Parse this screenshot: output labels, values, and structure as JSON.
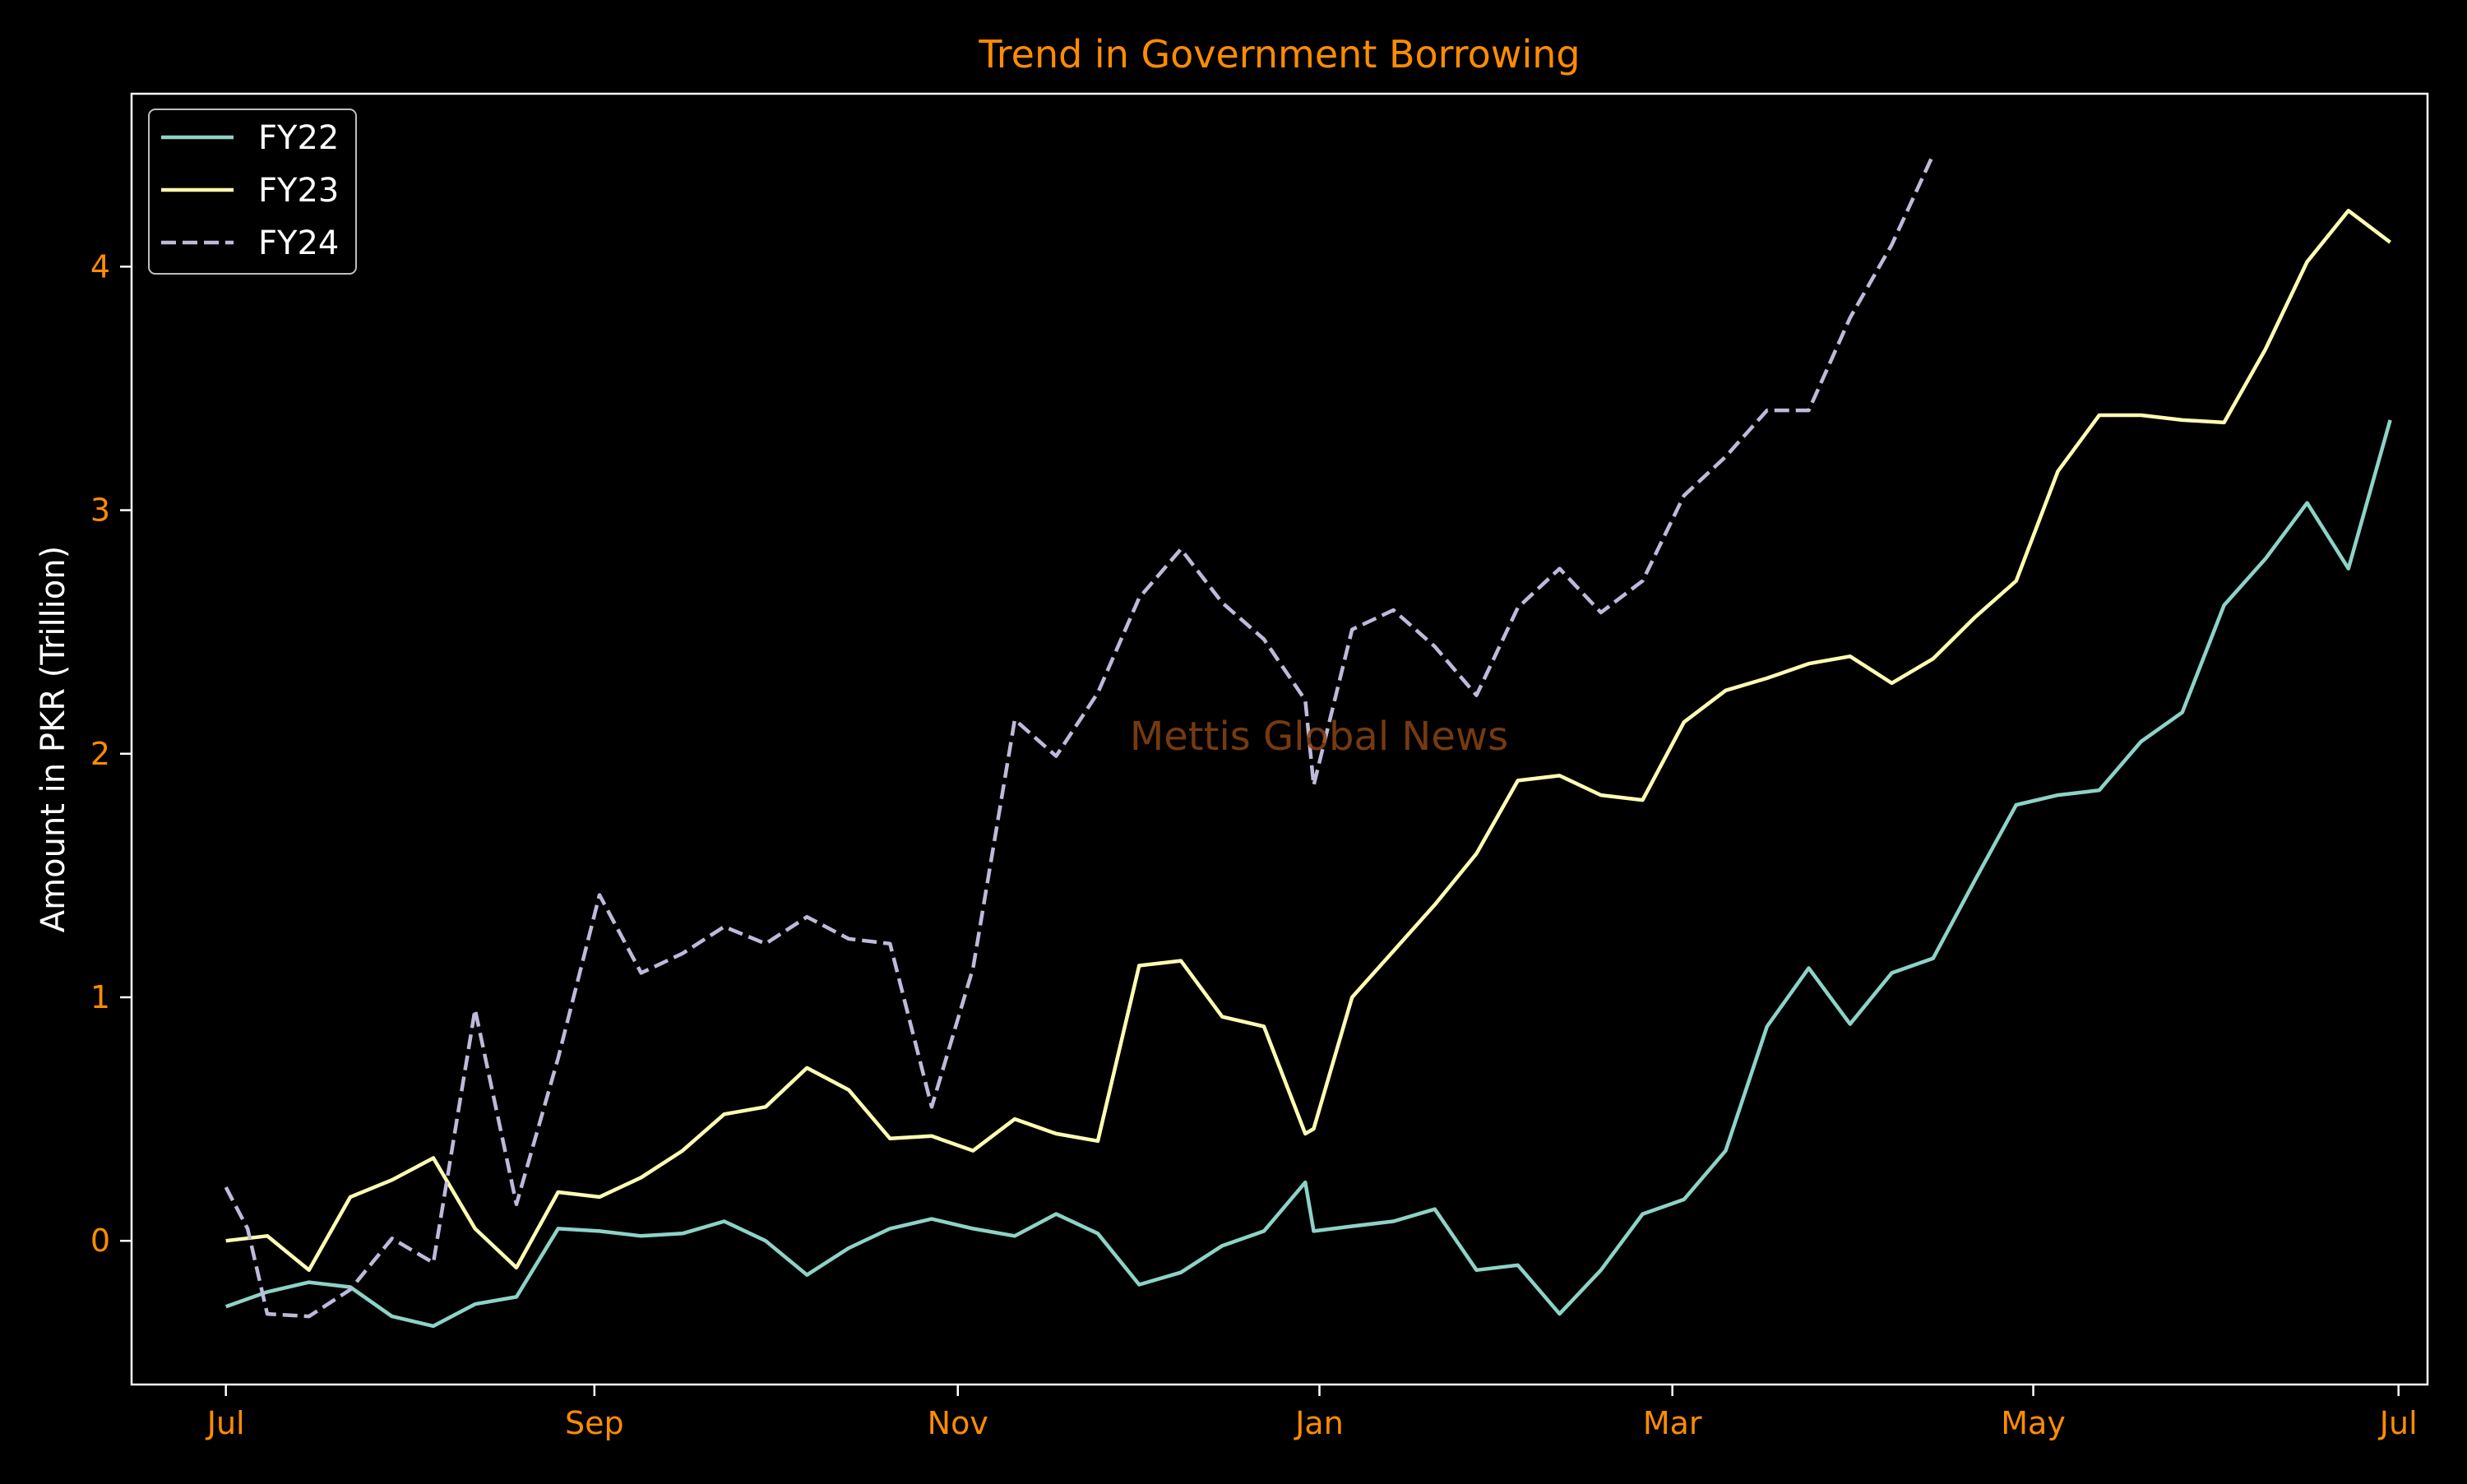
{
  "colors": {
    "background": "#000000",
    "axes_frame": "#ffffff",
    "title": "#ff8c00",
    "tick_labels": "#ff8c00",
    "axis_label": "#ffffff",
    "legend_text": "#ffffff",
    "legend_frame": "#bfbfbf",
    "watermark": "#8b4513"
  },
  "watermark": "Mettis Global News",
  "chart_data": {
    "type": "line",
    "title": "Trend in Government Borrowing",
    "xlabel": "",
    "ylabel": "Amount in PKR (Trillion)",
    "x_unit": "week index from start of fiscal year (July)",
    "xlim": [
      -2.6,
      60.7
    ],
    "ylim": [
      -0.59,
      4.71
    ],
    "x_ticks": [
      {
        "x": 0,
        "label": "Jul"
      },
      {
        "x": 10.16,
        "label": "Sep"
      },
      {
        "x": 20.18,
        "label": "Nov"
      },
      {
        "x": 30.15,
        "label": "Jan"
      },
      {
        "x": 39.88,
        "label": "Mar"
      },
      {
        "x": 49.83,
        "label": "May"
      },
      {
        "x": 59.9,
        "label": "Jul"
      }
    ],
    "y_ticks": [
      0,
      1,
      2,
      3,
      4
    ],
    "grid": false,
    "legend": {
      "position": "top-left"
    },
    "series": [
      {
        "name": "FY22",
        "color": "#8dd3c7",
        "dash": "solid",
        "x": [
          0,
          1.14,
          2.29,
          3.43,
          4.58,
          5.72,
          6.87,
          8.01,
          9.16,
          10.3,
          11.45,
          12.59,
          13.74,
          14.88,
          16.02,
          17.17,
          18.31,
          19.46,
          20.6,
          21.75,
          22.89,
          24.04,
          25.18,
          26.33,
          27.47,
          28.62,
          29.76,
          29.99,
          31.05,
          32.19,
          33.33,
          34.48,
          35.62,
          36.77,
          37.91,
          39.06,
          40.2,
          41.35,
          42.49,
          43.64,
          44.78,
          45.93,
          47.07,
          48.22,
          49.36,
          50.51,
          51.65,
          52.8,
          53.94,
          55.09,
          56.23,
          57.38,
          58.52,
          59.67
        ],
        "values": [
          -0.27,
          -0.21,
          -0.17,
          -0.19,
          -0.31,
          -0.35,
          -0.26,
          -0.23,
          0.05,
          0.04,
          0.02,
          0.03,
          0.08,
          0.0,
          -0.14,
          -0.03,
          0.05,
          0.09,
          0.05,
          0.02,
          0.11,
          0.03,
          -0.18,
          -0.13,
          -0.02,
          0.04,
          0.24,
          0.04,
          0.06,
          0.08,
          0.13,
          -0.12,
          -0.1,
          -0.3,
          -0.12,
          0.11,
          0.17,
          0.37,
          0.88,
          1.12,
          0.89,
          1.1,
          1.16,
          1.48,
          1.79,
          1.83,
          1.85,
          2.05,
          2.17,
          2.61,
          2.8,
          3.03,
          2.76,
          3.37
        ]
      },
      {
        "name": "FY23",
        "color": "#ffffb3",
        "dash": "solid",
        "x": [
          0,
          1.14,
          2.29,
          3.43,
          4.58,
          5.72,
          6.87,
          8.01,
          9.16,
          10.3,
          11.45,
          12.59,
          13.74,
          14.88,
          16.02,
          17.17,
          18.31,
          19.46,
          20.6,
          21.75,
          22.89,
          24.04,
          25.18,
          26.33,
          27.47,
          28.62,
          29.76,
          29.99,
          31.05,
          32.19,
          33.33,
          34.48,
          35.62,
          36.77,
          37.91,
          39.06,
          40.2,
          41.35,
          42.49,
          43.64,
          44.78,
          45.93,
          47.07,
          48.22,
          49.36,
          50.51,
          51.65,
          52.8,
          53.94,
          55.09,
          56.23,
          57.38,
          58.52,
          59.67
        ],
        "values": [
          0.0,
          0.02,
          -0.12,
          0.18,
          0.25,
          0.34,
          0.05,
          -0.11,
          0.2,
          0.18,
          0.26,
          0.37,
          0.52,
          0.55,
          0.71,
          0.62,
          0.42,
          0.43,
          0.37,
          0.5,
          0.44,
          0.41,
          1.13,
          1.15,
          0.92,
          0.88,
          0.44,
          0.46,
          1.0,
          1.19,
          1.38,
          1.59,
          1.89,
          1.91,
          1.83,
          1.81,
          2.13,
          2.26,
          2.31,
          2.37,
          2.4,
          2.29,
          2.39,
          2.56,
          2.71,
          3.16,
          3.39,
          3.39,
          3.37,
          3.36,
          3.66,
          4.02,
          4.23,
          4.1
        ]
      },
      {
        "name": "FY24",
        "color": "#bebada",
        "dash": "dashed",
        "x": [
          0,
          0.6,
          1.14,
          2.29,
          3.43,
          4.58,
          5.72,
          6.87,
          8.01,
          9.16,
          10.3,
          11.45,
          12.59,
          13.74,
          14.88,
          16.02,
          17.17,
          18.31,
          19.46,
          20.6,
          21.75,
          22.89,
          24.04,
          25.18,
          26.33,
          27.47,
          28.62,
          29.76,
          29.99,
          31.05,
          32.19,
          33.33,
          34.48,
          35.62,
          36.77,
          37.91,
          39.06,
          40.2,
          41.35,
          42.49,
          43.64,
          44.78,
          45.93,
          47.07
        ],
        "values": [
          0.22,
          0.05,
          -0.3,
          -0.31,
          -0.2,
          0.01,
          -0.09,
          0.95,
          0.15,
          0.75,
          1.42,
          1.1,
          1.18,
          1.29,
          1.22,
          1.33,
          1.24,
          1.22,
          0.55,
          1.12,
          2.14,
          1.99,
          2.25,
          2.64,
          2.84,
          2.62,
          2.47,
          2.22,
          1.87,
          2.51,
          2.59,
          2.44,
          2.24,
          2.6,
          2.76,
          2.58,
          2.71,
          3.06,
          3.22,
          3.41,
          3.41,
          3.79,
          4.09,
          4.46
        ]
      }
    ]
  }
}
